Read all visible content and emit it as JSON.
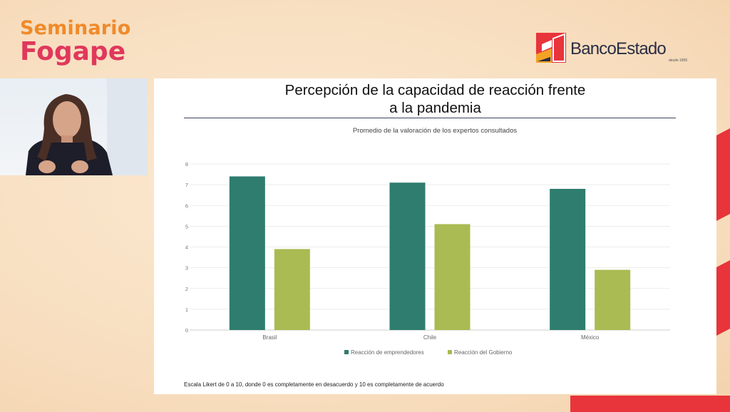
{
  "event": {
    "line1": "Seminario",
    "line2": "Fogape"
  },
  "brand": {
    "name": "BancoEstado",
    "tagline": "desde 1855"
  },
  "slide": {
    "title": "Percepción de la capacidad de reacción frente a la pandemia",
    "footnote": "Escala Likert de 0 a 10, donde 0 es completamente en desacuerdo y 10 es completamente de acuerdo"
  },
  "chart_data": {
    "type": "bar",
    "title": "Promedio de la valoración de los expertos consultados",
    "categories": [
      "Brasil",
      "Chile",
      "México"
    ],
    "series": [
      {
        "name": "Reacción de emprendedores",
        "color": "#2e7d6e",
        "values": [
          7.4,
          7.1,
          6.8
        ]
      },
      {
        "name": "Reacción del Gobierno",
        "color": "#a9bb52",
        "values": [
          3.9,
          5.1,
          2.9
        ]
      }
    ],
    "yticks": [
      0,
      1,
      2,
      3,
      4,
      5,
      6,
      7,
      8
    ],
    "ylim": [
      0,
      8
    ],
    "grid": true,
    "legend": "bottom"
  },
  "colors": {
    "accent_orange": "#f08a2a",
    "accent_pink": "#e0385c",
    "brand_red": "#e8343b"
  }
}
